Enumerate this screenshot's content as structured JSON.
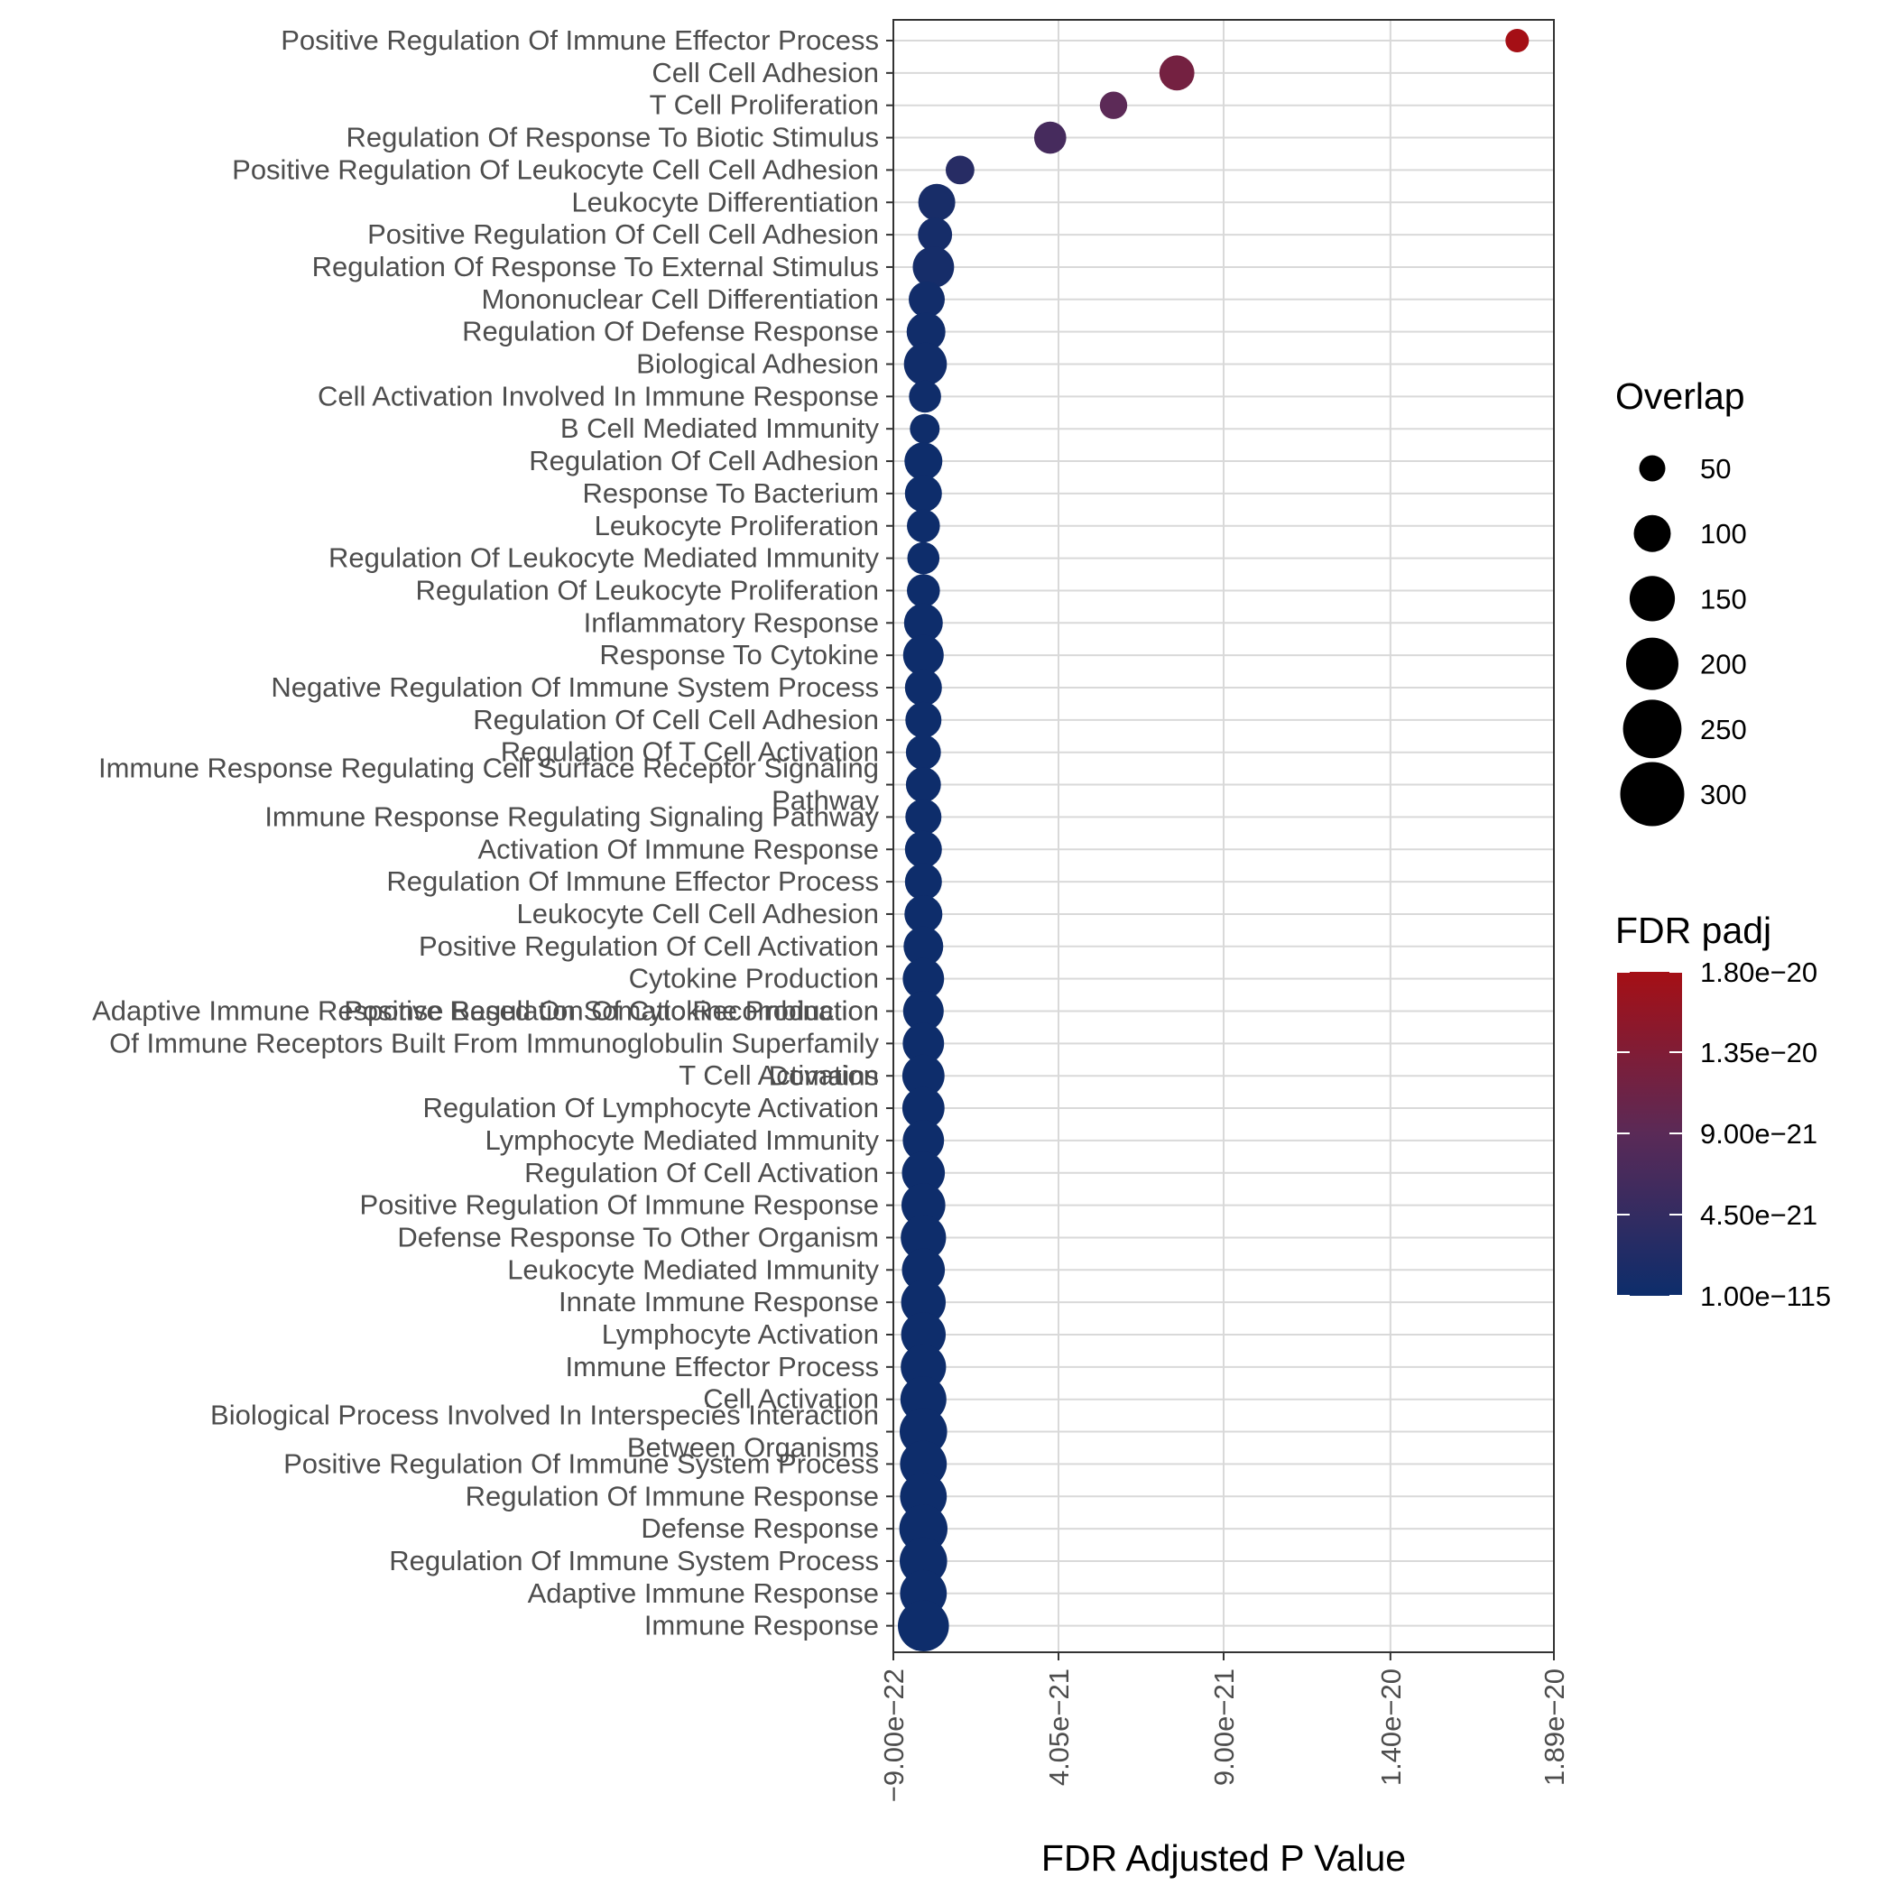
{
  "chart_data": {
    "type": "scatter",
    "title": "",
    "xlabel": "FDR Adjusted P Value",
    "ylabel": "",
    "xlim": [
      -9e-22,
      1.89e-20
    ],
    "x_ticks": [
      {
        "value": -9e-22,
        "label": "−9.00e−22"
      },
      {
        "value": 4.05e-21,
        "label": "4.05e−21"
      },
      {
        "value": 9e-21,
        "label": "9.00e−21"
      },
      {
        "value": 1.4e-20,
        "label": "1.40e−20"
      },
      {
        "value": 1.89e-20,
        "label": "1.89e−20"
      }
    ],
    "grid": true,
    "categories": [
      "Positive Regulation Of Immune Effector Process",
      "Cell Cell Adhesion",
      "T Cell Proliferation",
      "Regulation Of Response To Biotic Stimulus",
      "Positive Regulation Of Leukocyte Cell Cell Adhesion",
      "Leukocyte Differentiation",
      "Positive Regulation Of Cell Cell Adhesion",
      "Regulation Of Response To External Stimulus",
      "Mononuclear Cell Differentiation",
      "Regulation Of Defense Response",
      "Biological Adhesion",
      "Cell Activation Involved In Immune Response",
      "B Cell Mediated Immunity",
      "Regulation Of Cell Adhesion",
      "Response To Bacterium",
      "Leukocyte Proliferation",
      "Regulation Of Leukocyte Mediated Immunity",
      "Regulation Of Leukocyte Proliferation",
      "Inflammatory Response",
      "Response To Cytokine",
      "Negative Regulation Of Immune System Process",
      "Regulation Of Cell Cell Adhesion",
      "Regulation Of T Cell Activation",
      "Immune Response Regulating Cell Surface Receptor Signaling Pathway",
      "Immune Response Regulating Signaling Pathway",
      "Activation Of Immune Response",
      "Regulation Of Immune Effector Process",
      "Leukocyte Cell Cell Adhesion",
      "Positive Regulation Of Cell Activation",
      "Cytokine Production",
      "Positive Regulation Of Cytokine Production",
      "Adaptive Immune Response Based On Somatic Recombination Of Immune Receptors Built From Immunoglobulin Superfamily Domains",
      "T Cell Activation",
      "Regulation Of Lymphocyte Activation",
      "Lymphocyte Mediated Immunity",
      "Regulation Of Cell Activation",
      "Positive Regulation Of Immune Response",
      "Defense Response To Other Organism",
      "Leukocyte Mediated Immunity",
      "Innate Immune Response",
      "Lymphocyte Activation",
      "Immune Effector Process",
      "Cell Activation",
      "Biological Process Involved In Interspecies Interaction Between Organisms",
      "Positive Regulation Of Immune System Process",
      "Regulation Of Immune Response",
      "Defense Response",
      "Regulation Of Immune System Process",
      "Adaptive Immune Response",
      "Immune Response"
    ],
    "category_label_lines": [
      [
        "Positive Regulation Of Immune Effector Process"
      ],
      [
        "Cell Cell Adhesion"
      ],
      [
        "T Cell Proliferation"
      ],
      [
        "Regulation Of Response To Biotic Stimulus"
      ],
      [
        "Positive Regulation Of Leukocyte Cell Cell Adhesion"
      ],
      [
        "Leukocyte Differentiation"
      ],
      [
        "Positive Regulation Of Cell Cell Adhesion"
      ],
      [
        "Regulation Of Response To External Stimulus"
      ],
      [
        "Mononuclear Cell Differentiation"
      ],
      [
        "Regulation Of Defense Response"
      ],
      [
        "Biological Adhesion"
      ],
      [
        "Cell Activation Involved In Immune Response"
      ],
      [
        "B Cell Mediated Immunity"
      ],
      [
        "Regulation Of Cell Adhesion"
      ],
      [
        "Response To Bacterium"
      ],
      [
        "Leukocyte Proliferation"
      ],
      [
        "Regulation Of Leukocyte Mediated Immunity"
      ],
      [
        "Regulation Of Leukocyte Proliferation"
      ],
      [
        "Inflammatory Response"
      ],
      [
        "Response To Cytokine"
      ],
      [
        "Negative Regulation Of Immune System Process"
      ],
      [
        "Regulation Of Cell Cell Adhesion"
      ],
      [
        "Regulation Of T Cell Activation"
      ],
      [
        "Immune Response Regulating Cell Surface Receptor Signaling",
        "Pathway"
      ],
      [
        "Immune Response Regulating Signaling Pathway"
      ],
      [
        "Activation Of Immune Response"
      ],
      [
        "Regulation Of Immune Effector Process"
      ],
      [
        "Leukocyte Cell Cell Adhesion"
      ],
      [
        "Positive Regulation Of Cell Activation"
      ],
      [
        "Cytokine Production"
      ],
      [
        "Positive Regulation Of Cytokine Production"
      ],
      [
        "Adaptive Immune Response Based On Somatic Recombination",
        "Of Immune Receptors Built From Immunoglobulin Superfamily",
        "Domains"
      ],
      [
        "T Cell Activation"
      ],
      [
        "Regulation Of Lymphocyte Activation"
      ],
      [
        "Lymphocyte Mediated Immunity"
      ],
      [
        "Regulation Of Cell Activation"
      ],
      [
        "Positive Regulation Of Immune Response"
      ],
      [
        "Defense Response To Other Organism"
      ],
      [
        "Leukocyte Mediated Immunity"
      ],
      [
        "Innate Immune Response"
      ],
      [
        "Lymphocyte Activation"
      ],
      [
        "Immune Effector Process"
      ],
      [
        "Cell Activation"
      ],
      [
        "Biological Process Involved In Interspecies Interaction",
        "Between Organisms"
      ],
      [
        "Positive Regulation Of Immune System Process"
      ],
      [
        "Regulation Of Immune Response"
      ],
      [
        "Defense Response"
      ],
      [
        "Regulation Of Immune System Process"
      ],
      [
        "Adaptive Immune Response"
      ],
      [
        "Immune Response"
      ]
    ],
    "x": [
      1.78e-20,
      7.6e-21,
      5.7e-21,
      3.8e-21,
      1.1e-21,
      4e-22,
      3.5e-22,
      3e-22,
      1e-22,
      8e-23,
      6e-23,
      5e-23,
      4e-23,
      0,
      0,
      0,
      0,
      0,
      0,
      0,
      0,
      0,
      0,
      0,
      0,
      0,
      0,
      0,
      0,
      0,
      0,
      0,
      0,
      0,
      0,
      0,
      0,
      0,
      0,
      0,
      0,
      0,
      0,
      0,
      0,
      0,
      0,
      0,
      0,
      0
    ],
    "overlap": [
      40,
      90,
      55,
      75,
      60,
      100,
      85,
      125,
      95,
      110,
      135,
      75,
      65,
      105,
      100,
      80,
      75,
      80,
      110,
      120,
      100,
      95,
      90,
      90,
      95,
      100,
      100,
      105,
      115,
      125,
      120,
      125,
      130,
      130,
      125,
      135,
      140,
      150,
      135,
      145,
      145,
      150,
      155,
      165,
      160,
      160,
      170,
      165,
      160,
      190
    ],
    "fdr_padj": [
      1.8e-20,
      1.2e-20,
      9e-21,
      6.5e-21,
      3e-21,
      1.2e-21,
      1e-21,
      1e-21,
      6e-22,
      5e-22,
      4e-22,
      3e-22,
      2.5e-22,
      1e-22,
      1e-22,
      1e-22,
      1e-22,
      1e-22,
      1e-22,
      1e-22,
      1e-22,
      1e-22,
      1e-22,
      1e-22,
      1e-22,
      1e-22,
      1e-22,
      1e-22,
      1e-22,
      1e-22,
      1e-22,
      1e-22,
      1e-22,
      1e-22,
      1e-22,
      1e-22,
      1e-22,
      1e-22,
      1e-22,
      1e-22,
      1e-22,
      1e-22,
      1e-22,
      1e-22,
      1e-22,
      1e-22,
      1e-22,
      1e-22,
      1e-22,
      1e-22
    ],
    "size_legend": {
      "title": "Overlap",
      "values": [
        50,
        100,
        150,
        200,
        250,
        300
      ],
      "labels": [
        "50",
        "100",
        "150",
        "200",
        "250",
        "300"
      ]
    },
    "color_legend": {
      "title": "FDR padj",
      "labels": [
        "1.80e−20",
        "1.35e−20",
        "9.00e−21",
        "4.50e−21",
        "1.00e−115"
      ],
      "low_color": "#0d2d6b",
      "high_color": "#a50f15"
    },
    "colors": {
      "low": "#0d2d6b",
      "mid": "#5c2a57",
      "high": "#a50f15",
      "grid": "#d9d9d9",
      "panel_border": "#333333"
    }
  }
}
